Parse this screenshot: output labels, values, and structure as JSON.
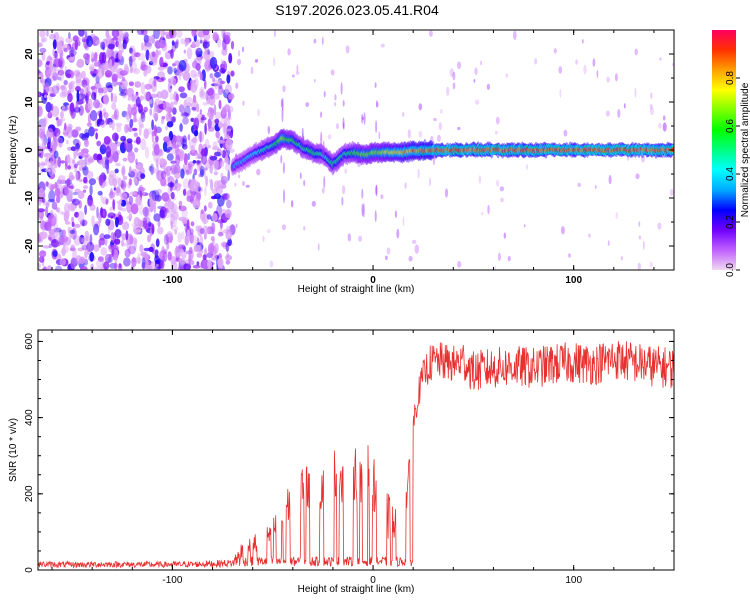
{
  "page_title": "S197.2026.023.05.41.R04",
  "chart_data": [
    {
      "type": "heatmap",
      "title": "S197.2026.023.05.41.R04",
      "xlabel": "Height of straight line (km)",
      "ylabel": "Frequency (Hz)",
      "xlim": [
        -167,
        150
      ],
      "ylim": [
        -25,
        25
      ],
      "x_ticks": [
        -100,
        0,
        100
      ],
      "y_ticks": [
        -20,
        -10,
        0,
        10,
        20
      ],
      "noise_region": [
        -167,
        -70
      ],
      "ridge": {
        "x": [
          -70,
          -60,
          -50,
          -45,
          -40,
          -35,
          -30,
          -25,
          -20,
          -15,
          -10,
          -5,
          0,
          5,
          10,
          15,
          20,
          30,
          40,
          60,
          80,
          100,
          120,
          140,
          150
        ],
        "frequency": [
          -3.5,
          -1.0,
          1.0,
          2.5,
          2.0,
          0.5,
          -0.5,
          -1.0,
          -3.0,
          -1.0,
          -0.5,
          -1.0,
          -0.5,
          -0.5,
          -0.5,
          -0.5,
          -0.2,
          0.0,
          0.0,
          0.0,
          0.0,
          0.0,
          0.0,
          0.0,
          0.0
        ],
        "amplitude": [
          0.35,
          0.45,
          0.55,
          0.7,
          0.6,
          0.55,
          0.6,
          0.5,
          0.55,
          0.55,
          0.6,
          0.7,
          0.7,
          0.75,
          0.8,
          0.85,
          0.9,
          0.95,
          0.95,
          0.95,
          0.95,
          0.95,
          0.95,
          0.95,
          0.95
        ]
      },
      "colorbar": {
        "label": "Normalized spectral amplitude",
        "range": [
          0.0,
          1.0
        ],
        "ticks": [
          "0.0",
          "0.2",
          "0.4",
          "0.6",
          "0.8"
        ],
        "colors": [
          "#f0d8f0",
          "#c060ff",
          "#7000ff",
          "#0000ff",
          "#00aaff",
          "#00ffff",
          "#00ff80",
          "#00ff00",
          "#80ff00",
          "#ffff00",
          "#ffa000",
          "#ff3000",
          "#ff0060"
        ]
      }
    },
    {
      "type": "line",
      "xlabel": "Height of straight line (km)",
      "ylabel": "SNR (10 * v/v)",
      "xlim": [
        -167,
        150
      ],
      "ylim": [
        0,
        630
      ],
      "x_ticks": [
        -100,
        0,
        100
      ],
      "y_ticks": [
        0,
        200,
        400,
        600
      ],
      "series": [
        {
          "name": "SNR",
          "color": "#e83030",
          "x": [
            -167,
            -150,
            -130,
            -110,
            -90,
            -70,
            -65,
            -60,
            -55,
            -50,
            -45,
            -40,
            -35,
            -30,
            -25,
            -20,
            -15,
            -12,
            -10,
            -8,
            -5,
            -2,
            0,
            3,
            6,
            10,
            13,
            16,
            18,
            20,
            22,
            25,
            28,
            32,
            36,
            40,
            45,
            50,
            60,
            70,
            80,
            90,
            100,
            110,
            120,
            130,
            140,
            150
          ],
          "mean": [
            15,
            14,
            15,
            14,
            15,
            18,
            45,
            60,
            55,
            90,
            120,
            180,
            210,
            160,
            200,
            240,
            220,
            150,
            230,
            220,
            160,
            240,
            200,
            180,
            130,
            90,
            100,
            140,
            250,
            380,
            450,
            510,
            540,
            550,
            545,
            540,
            550,
            520,
            530,
            535,
            530,
            540,
            545,
            540,
            555,
            545,
            535,
            530
          ],
          "spread": [
            8,
            8,
            8,
            8,
            8,
            10,
            40,
            50,
            60,
            70,
            90,
            110,
            130,
            130,
            130,
            150,
            150,
            150,
            150,
            150,
            150,
            150,
            150,
            150,
            130,
            120,
            110,
            100,
            60,
            40,
            40,
            40,
            50,
            50,
            50,
            50,
            55,
            55,
            55,
            55,
            55,
            55,
            55,
            55,
            55,
            55,
            55,
            55
          ]
        }
      ]
    }
  ]
}
